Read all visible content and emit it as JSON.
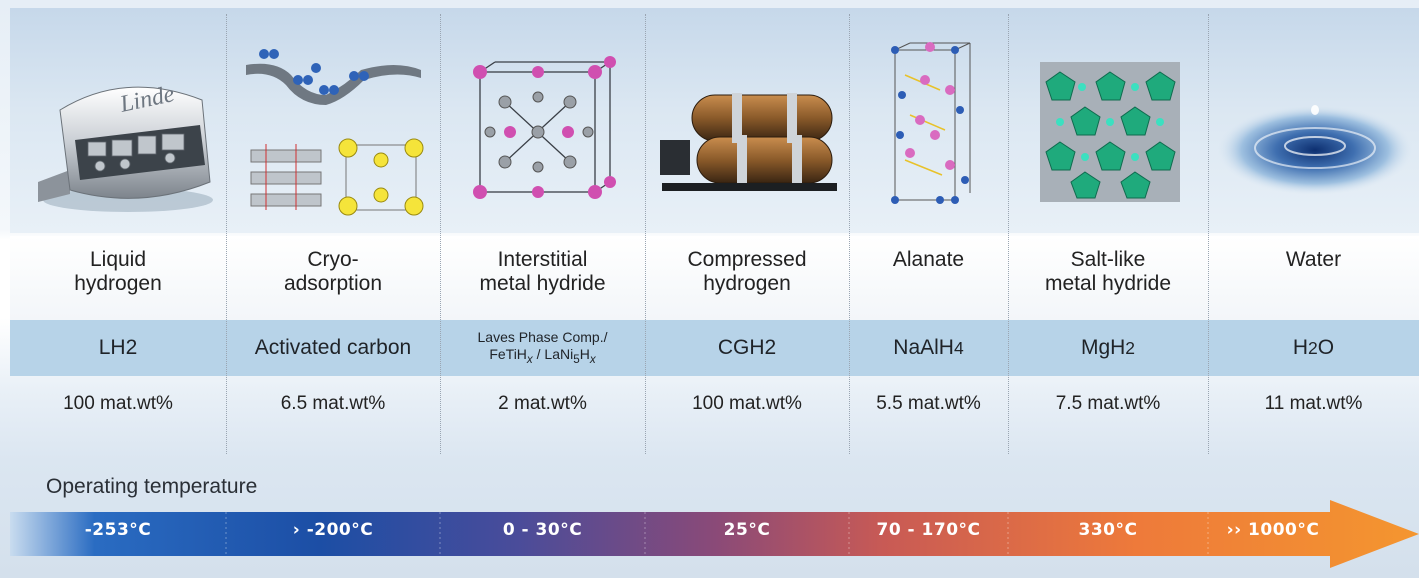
{
  "columns": [
    {
      "name_line1": "Liquid",
      "name_line2": "hydrogen",
      "formula": "LH2",
      "capacity": "100 mat.wt%",
      "temperature": "-253°C",
      "icon": "liquid-hydrogen-tank-icon"
    },
    {
      "name_line1": "Cryo-",
      "name_line2": "adsorption",
      "formula": "Activated carbon",
      "capacity": "6.5 mat.wt%",
      "temperature": "› -200°C",
      "icon": "cryo-adsorption-structure-icon"
    },
    {
      "name_line1": "Interstitial",
      "name_line2": "metal hydride",
      "formula_line1": "Laves Phase Comp./",
      "formula_line2_parts": [
        "FeTiH",
        "x",
        " / LaNi",
        "5",
        "H",
        "x"
      ],
      "capacity": "2 mat.wt%",
      "temperature": "0 - 30°C",
      "icon": "crystal-lattice-icon"
    },
    {
      "name_line1": "Compressed",
      "name_line2": "hydrogen",
      "formula": "CGH2",
      "capacity": "100 mat.wt%",
      "temperature": "25°C",
      "icon": "pressure-tank-icon"
    },
    {
      "name_line1": "Alanate",
      "name_line2": "",
      "formula_base": "NaAlH",
      "formula_sub": "4",
      "capacity": "5.5 mat.wt%",
      "temperature": "70 - 170°C",
      "icon": "alanate-structure-icon"
    },
    {
      "name_line1": "Salt-like",
      "name_line2": "metal hydride",
      "formula_base": "MgH",
      "formula_sub": "2",
      "capacity": "7.5 mat.wt%",
      "temperature": "330°C",
      "icon": "salt-hydride-structure-icon"
    },
    {
      "name_line1": "Water",
      "name_line2": "",
      "formula_base": "H",
      "formula_sub": "2",
      "formula_tail": "O",
      "capacity": "11 mat.wt%",
      "temperature": "›› 1000°C",
      "icon": "water-drop-icon"
    }
  ],
  "tank_logo": "Linde",
  "operating_label": "Operating temperature",
  "colors": {
    "arrow_start": "#1f5fb5",
    "arrow_mid": "#7a4a7a",
    "arrow_end": "#f28a30",
    "formula_band": "#b7d3e8",
    "image_band": "#c6d8ea"
  }
}
